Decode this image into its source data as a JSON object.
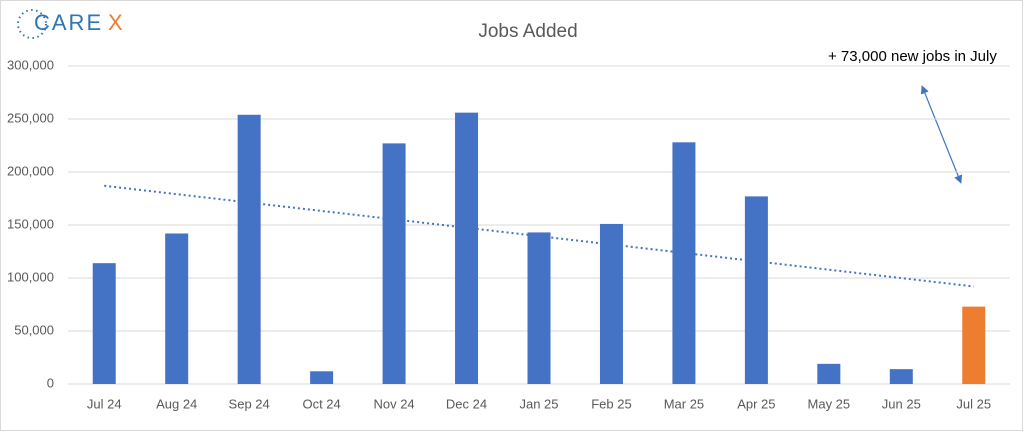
{
  "logo": {
    "text": "CARE",
    "accent": "X"
  },
  "chart_data": {
    "type": "bar",
    "title": "Jobs Added",
    "categories": [
      "Jul 24",
      "Aug 24",
      "Sep 24",
      "Oct 24",
      "Nov 24",
      "Dec 24",
      "Jan 25",
      "Feb 25",
      "Mar 25",
      "Apr 25",
      "May 25",
      "Jun 25",
      "Jul 25"
    ],
    "values": [
      114000,
      142000,
      254000,
      12000,
      227000,
      256000,
      143000,
      151000,
      228000,
      177000,
      19000,
      14000,
      73000
    ],
    "colors": [
      "#4472c4",
      "#4472c4",
      "#4472c4",
      "#4472c4",
      "#4472c4",
      "#4472c4",
      "#4472c4",
      "#4472c4",
      "#4472c4",
      "#4472c4",
      "#4472c4",
      "#4472c4",
      "#ed7d31"
    ],
    "trendline": {
      "values": [
        187000,
        92000
      ],
      "color": "#4472c4"
    },
    "annotation": "+ 73,000 new jobs in July",
    "ylim": [
      0,
      300000
    ],
    "yticks": [
      0,
      {
        "value": 50000,
        "label": "50,000"
      },
      {
        "value": 100000,
        "label": "100,000"
      },
      {
        "value": 150000,
        "label": "150,000"
      },
      {
        "value": 200000,
        "label": "200,000"
      },
      {
        "value": 250000,
        "label": "250,000"
      },
      {
        "value": 300000,
        "label": "300,000"
      }
    ],
    "grid": true
  }
}
